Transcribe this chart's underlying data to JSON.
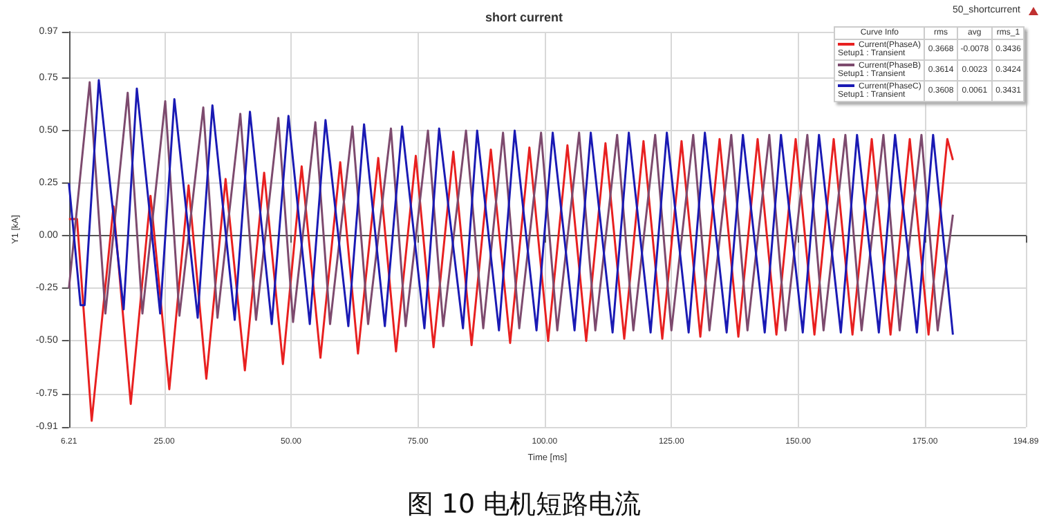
{
  "chart_data": {
    "type": "line",
    "title": "short current",
    "xlabel": "Time [ms]",
    "ylabel": "Y1 [kA]",
    "xlim": [
      6.21,
      194.89
    ],
    "xticks": [
      6.21,
      {
        "value": 25,
        "label": "25.00"
      },
      {
        "value": 50,
        "label": "50.00"
      },
      {
        "value": 75,
        "label": "75.00"
      },
      {
        "value": 100,
        "label": "100.00"
      },
      {
        "value": 125,
        "label": "125.00"
      },
      {
        "value": 150,
        "label": "150.00"
      },
      {
        "value": 175,
        "label": "175.00"
      },
      194.89
    ],
    "ylim": [
      -0.91,
      0.97
    ],
    "yticks": [
      -0.91,
      -0.75,
      {
        "value": -0.5,
        "label": "-0.50"
      },
      -0.25,
      {
        "value": 0,
        "label": "0.00"
      },
      0.25,
      {
        "value": 0.5,
        "label": "0.50"
      },
      0.75,
      0.97
    ],
    "grid": true,
    "legend": "top right",
    "marker": "none",
    "series": [
      {
        "name": "Current(PhaseA)",
        "color": "#e82020",
        "x": [
          6.21,
          7.8,
          10.7,
          15,
          18.4,
          22.3,
          26,
          29.8,
          33.3,
          37.1,
          40.9,
          44.7,
          48.4,
          52.1,
          55.8,
          59.7,
          63.2,
          67.2,
          70.7,
          74.6,
          78.1,
          82,
          85.6,
          89.4,
          93.2,
          97,
          100.7,
          104.5,
          108.2,
          112,
          115.7,
          119.5,
          123.2,
          127,
          130.7,
          134.5,
          138.2,
          142,
          145.7,
          149.5,
          153.2,
          157,
          160.7,
          164.5,
          168.2,
          172,
          175.7,
          179.4,
          180.5
        ],
        "values": [
          0.08,
          0.08,
          -0.88,
          0.14,
          -0.8,
          0.19,
          -0.73,
          0.24,
          -0.68,
          0.27,
          -0.64,
          0.3,
          -0.61,
          0.33,
          -0.58,
          0.35,
          -0.56,
          0.37,
          -0.55,
          0.38,
          -0.53,
          0.4,
          -0.52,
          0.41,
          -0.51,
          0.42,
          -0.5,
          0.43,
          -0.5,
          0.44,
          -0.49,
          0.45,
          -0.49,
          0.45,
          -0.48,
          0.46,
          -0.48,
          0.46,
          -0.47,
          0.46,
          -0.47,
          0.46,
          -0.47,
          0.46,
          -0.47,
          0.46,
          -0.47,
          0.46,
          0.36
        ]
      },
      {
        "name": "Current(PhaseB)",
        "color": "#7d4a6e",
        "x": [
          6.21,
          10.3,
          13.4,
          17.8,
          20.7,
          25.2,
          28,
          32.7,
          35.5,
          40,
          43.1,
          47.5,
          50.4,
          54.8,
          57.7,
          62.1,
          65.2,
          69.7,
          72.6,
          77,
          80,
          84.5,
          87.9,
          91.8,
          95,
          99.3,
          102.5,
          106.8,
          110,
          114.3,
          117.5,
          121.8,
          125,
          129.3,
          132.5,
          136.8,
          140,
          144.3,
          147.5,
          151.8,
          155,
          159.3,
          162.5,
          166.8,
          170,
          174.3,
          177.5,
          180.5
        ],
        "values": [
          -0.25,
          0.73,
          -0.37,
          0.68,
          -0.37,
          0.64,
          -0.38,
          0.61,
          -0.39,
          0.58,
          -0.4,
          0.56,
          -0.41,
          0.54,
          -0.42,
          0.52,
          -0.42,
          0.51,
          -0.43,
          0.5,
          -0.43,
          0.5,
          -0.44,
          0.49,
          -0.44,
          0.49,
          -0.45,
          0.49,
          -0.45,
          0.48,
          -0.45,
          0.48,
          -0.45,
          0.48,
          -0.45,
          0.48,
          -0.45,
          0.48,
          -0.45,
          0.48,
          -0.45,
          0.48,
          -0.45,
          0.48,
          -0.45,
          0.48,
          -0.45,
          0.1
        ]
      },
      {
        "name": "Current(PhaseC)",
        "color": "#1a1ab4",
        "x": [
          6.21,
          8.5,
          9.3,
          12.1,
          17,
          19.6,
          24.2,
          27,
          31.6,
          34.5,
          38.9,
          41.9,
          46.2,
          49.5,
          53.7,
          56.8,
          61.3,
          64.4,
          68.5,
          71.9,
          76.3,
          79.2,
          83.9,
          86.7,
          91,
          94.1,
          98.4,
          101.6,
          105.9,
          109.1,
          113.4,
          116.6,
          120.9,
          124.1,
          128.4,
          131.6,
          135.9,
          139.1,
          143.4,
          146.6,
          150.9,
          154.1,
          158.4,
          161.6,
          165.9,
          169.1,
          173.4,
          176.6,
          180.5
        ],
        "values": [
          0.25,
          -0.33,
          -0.33,
          0.74,
          -0.35,
          0.7,
          -0.37,
          0.65,
          -0.39,
          0.62,
          -0.4,
          0.59,
          -0.42,
          0.57,
          -0.42,
          0.55,
          -0.43,
          0.53,
          -0.43,
          0.52,
          -0.44,
          0.51,
          -0.44,
          0.5,
          -0.45,
          0.5,
          -0.45,
          0.49,
          -0.45,
          0.49,
          -0.46,
          0.49,
          -0.46,
          0.49,
          -0.46,
          0.49,
          -0.46,
          0.48,
          -0.46,
          0.48,
          -0.46,
          0.48,
          -0.46,
          0.48,
          -0.46,
          0.48,
          -0.46,
          0.48,
          -0.47
        ]
      }
    ],
    "annotations": [
      "Curve Info",
      "rms",
      "avg",
      "rms_1",
      "Setup1 : Transient",
      "0.3668",
      "-0.0078",
      "0.3436",
      "Setup1 : Transient",
      "0.3614",
      "0.0023",
      "0.3424",
      "Setup1 : Transient",
      "0.3608",
      "0.0061",
      "0.3431",
      "50_shortcurrent",
      "图 10 电机短路电流"
    ]
  }
}
